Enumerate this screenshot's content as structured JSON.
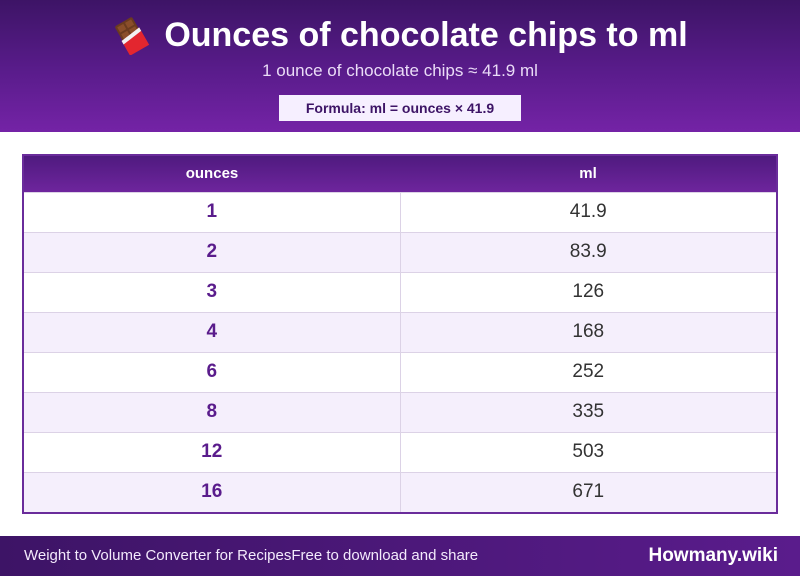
{
  "header": {
    "title": "Ounces of chocolate chips to ml",
    "subtitle": "1 ounce of chocolate chips ≈ 41.9 ml",
    "formula": "Formula: ml = ounces × 41.9",
    "icon": "chocolate-bar-icon"
  },
  "table": {
    "columns": [
      "ounces",
      "ml"
    ],
    "rows": [
      [
        "1",
        "41.9"
      ],
      [
        "2",
        "83.9"
      ],
      [
        "3",
        "126"
      ],
      [
        "4",
        "168"
      ],
      [
        "6",
        "252"
      ],
      [
        "8",
        "335"
      ],
      [
        "12",
        "503"
      ],
      [
        "16",
        "671"
      ]
    ]
  },
  "footer": {
    "left_a": "Weight to Volume Converter for Recipes",
    "left_b": "Free to download and share",
    "brand": "Howmany.wiki"
  },
  "colors": {
    "primary": "#5a1c8c",
    "primary_dark": "#3d1466",
    "row_alt": "#f5effc"
  }
}
